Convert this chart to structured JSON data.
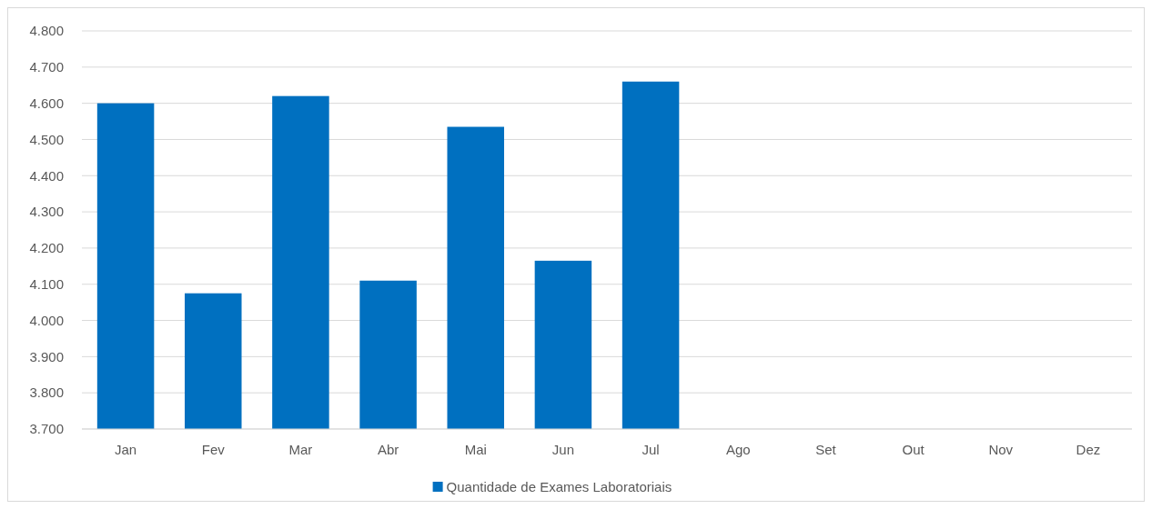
{
  "chart_data": {
    "type": "bar",
    "categories": [
      "Jan",
      "Fev",
      "Mar",
      "Abr",
      "Mai",
      "Jun",
      "Jul",
      "Ago",
      "Set",
      "Out",
      "Nov",
      "Dez"
    ],
    "series": [
      {
        "name": "Quantidade de Exames Laboratoriais",
        "color": "#0070c0",
        "values": [
          4600,
          4075,
          4620,
          4110,
          4535,
          4165,
          4660,
          null,
          null,
          null,
          null,
          null
        ]
      }
    ],
    "ylim": [
      3700,
      4800
    ],
    "yticks": [
      {
        "value": 3700,
        "label": "3.700"
      },
      {
        "value": 3800,
        "label": "3.800"
      },
      {
        "value": 3900,
        "label": "3.900"
      },
      {
        "value": 4000,
        "label": "4.000"
      },
      {
        "value": 4100,
        "label": "4.100"
      },
      {
        "value": 4200,
        "label": "4.200"
      },
      {
        "value": 4300,
        "label": "4.300"
      },
      {
        "value": 4400,
        "label": "4.400"
      },
      {
        "value": 4500,
        "label": "4.500"
      },
      {
        "value": 4600,
        "label": "4.600"
      },
      {
        "value": 4700,
        "label": "4.700"
      },
      {
        "value": 4800,
        "label": "4.800"
      }
    ],
    "grid": "y",
    "legend": "bottom"
  }
}
